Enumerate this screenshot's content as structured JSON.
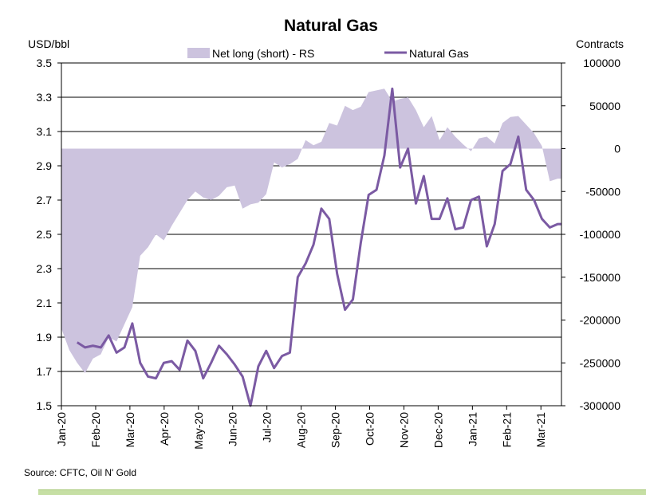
{
  "chart_data": {
    "type": "line",
    "title": "Natural Gas",
    "ylabel_left": "USD/bbl",
    "ylabel_right": "Contracts",
    "ylim_left": [
      1.5,
      3.5
    ],
    "ylim_right": [
      -300000,
      100000
    ],
    "left_ticks": [
      "3.5",
      "3.3",
      "3.1",
      "2.9",
      "2.7",
      "2.5",
      "2.3",
      "2.1",
      "1.9",
      "1.7",
      "1.5"
    ],
    "right_ticks": [
      "100000",
      "50000",
      "0",
      "-50000",
      "-100000",
      "-150000",
      "-200000",
      "-250000",
      "-300000"
    ],
    "x_range": [
      0,
      14.6
    ],
    "x_ticks": [
      "Jan-20",
      "Feb-20",
      "Mar-20",
      "Apr-20",
      "May-20",
      "Jun-20",
      "Jul-20",
      "Aug-20",
      "Sep-20",
      "Oct-20",
      "Nov-20",
      "Dec-20",
      "Jan-21",
      "Feb-21",
      "Mar-21"
    ],
    "legend": [
      "Net long (short) - RS",
      "Natural Gas"
    ],
    "series": [
      {
        "name": "Net long (short) - RS",
        "type": "area",
        "axis": "right",
        "color": "#ccc3de",
        "x": [
          0,
          0.23,
          0.46,
          0.69,
          0.92,
          1.15,
          1.38,
          1.61,
          1.84,
          2.07,
          2.3,
          2.53,
          2.76,
          2.99,
          3.22,
          3.45,
          3.68,
          3.91,
          4.14,
          4.37,
          4.6,
          4.83,
          5.06,
          5.29,
          5.52,
          5.75,
          5.98,
          6.21,
          6.44,
          6.67,
          6.9,
          7.13,
          7.36,
          7.59,
          7.82,
          8.05,
          8.28,
          8.51,
          8.74,
          8.97,
          9.2,
          9.43,
          9.66,
          9.89,
          10.12,
          10.35,
          10.58,
          10.81,
          11.04,
          11.27,
          11.5,
          11.73,
          11.96,
          12.19,
          12.42,
          12.65,
          12.88,
          13.11,
          13.34,
          13.57,
          13.8,
          14.03,
          14.26,
          14.49,
          14.6
        ],
        "values": [
          -210000,
          -235000,
          -250000,
          -262000,
          -245000,
          -240000,
          -220000,
          -225000,
          -205000,
          -185000,
          -125000,
          -115000,
          -100000,
          -107000,
          -90000,
          -75000,
          -60000,
          -50000,
          -57000,
          -60000,
          -55000,
          -45000,
          -43000,
          -70000,
          -65000,
          -63000,
          -53000,
          -16000,
          -22000,
          -18000,
          -12000,
          10000,
          4000,
          8000,
          30000,
          27000,
          50000,
          45000,
          49000,
          66000,
          68000,
          70000,
          55000,
          58000,
          60000,
          45000,
          25000,
          38000,
          10000,
          25000,
          14000,
          5000,
          -3000,
          12000,
          14000,
          6000,
          30000,
          37000,
          38000,
          28000,
          18000,
          3000,
          -38000,
          -35000,
          -35000
        ]
      },
      {
        "name": "Natural Gas",
        "type": "line",
        "axis": "left",
        "color": "#7b5aa3",
        "x": [
          0.46,
          0.69,
          0.92,
          1.15,
          1.38,
          1.61,
          1.84,
          2.07,
          2.3,
          2.53,
          2.76,
          2.99,
          3.22,
          3.45,
          3.68,
          3.91,
          4.14,
          4.37,
          4.6,
          4.83,
          5.06,
          5.29,
          5.52,
          5.75,
          5.98,
          6.21,
          6.44,
          6.67,
          6.9,
          7.13,
          7.36,
          7.59,
          7.82,
          8.05,
          8.28,
          8.51,
          8.74,
          8.97,
          9.2,
          9.43,
          9.66,
          9.89,
          10.12,
          10.35,
          10.58,
          10.81,
          11.04,
          11.27,
          11.5,
          11.73,
          11.96,
          12.19,
          12.42,
          12.65,
          12.88,
          13.11,
          13.34,
          13.57,
          13.8,
          14.03,
          14.26,
          14.49,
          14.6
        ],
        "values": [
          1.87,
          1.84,
          1.85,
          1.84,
          1.91,
          1.81,
          1.84,
          1.98,
          1.75,
          1.67,
          1.66,
          1.75,
          1.76,
          1.71,
          1.88,
          1.82,
          1.66,
          1.75,
          1.85,
          1.8,
          1.74,
          1.67,
          1.5,
          1.73,
          1.82,
          1.72,
          1.79,
          1.81,
          2.25,
          2.33,
          2.44,
          2.65,
          2.59,
          2.27,
          2.06,
          2.12,
          2.45,
          2.73,
          2.76,
          2.96,
          3.35,
          2.89,
          3.0,
          2.68,
          2.84,
          2.59,
          2.59,
          2.71,
          2.53,
          2.54,
          2.7,
          2.72,
          2.43,
          2.56,
          2.87,
          2.91,
          3.07,
          2.76,
          2.7,
          2.59,
          2.54,
          2.56,
          2.56
        ]
      }
    ]
  },
  "source": "Source: CFTC, Oil N' Gold"
}
